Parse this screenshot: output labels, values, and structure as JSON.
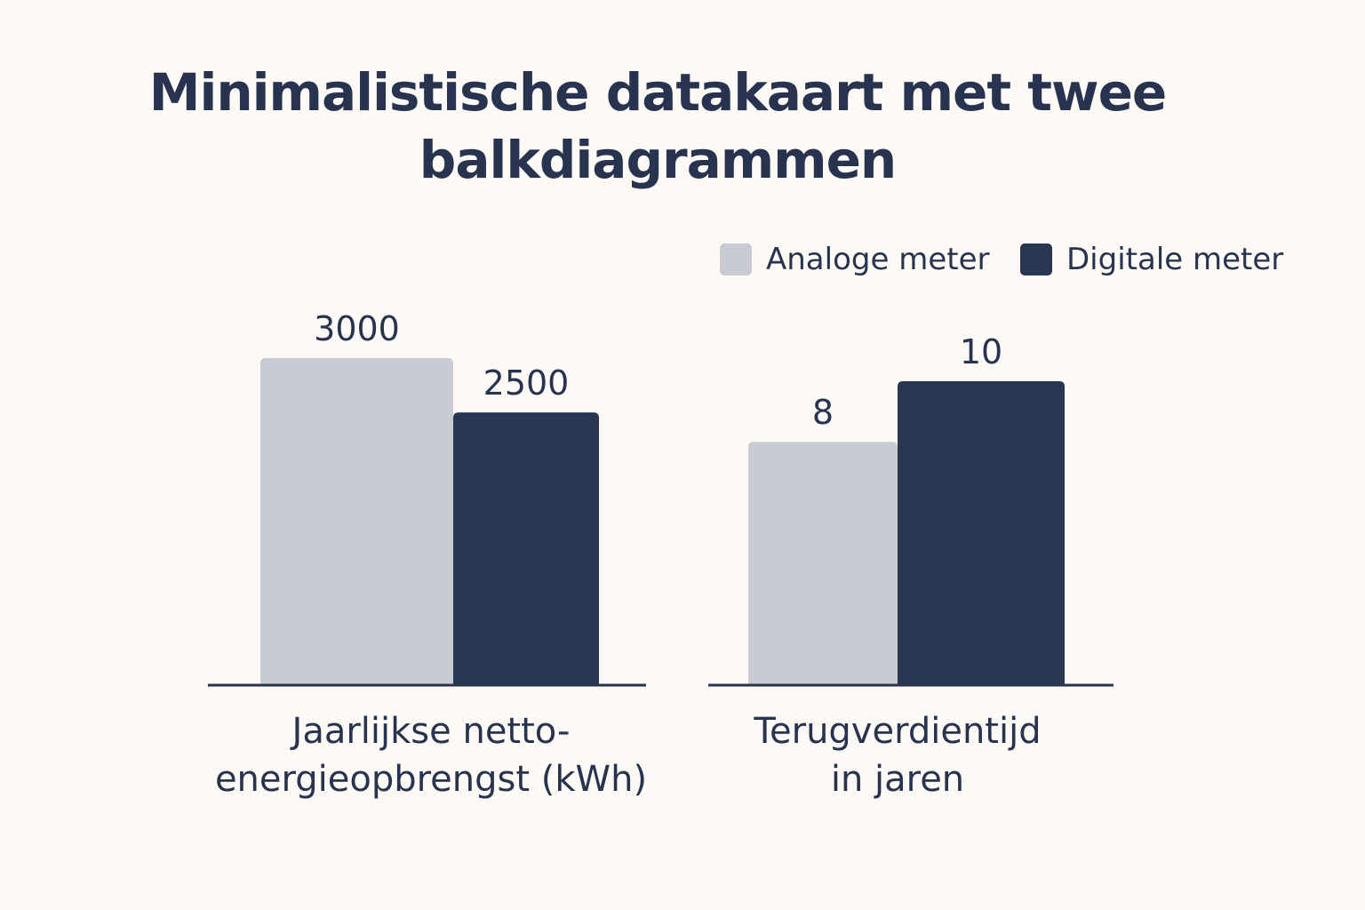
{
  "chart_data": [
    {
      "type": "bar",
      "title": "Minimalistische datakaart met twee balkdiagrammen",
      "category": "Jaarlijkse netto-energieopbrengst (kWh)",
      "category_lines": [
        "Jaarlijkse netto-",
        "energieopbrengst (kWh)"
      ],
      "series": [
        {
          "name": "Analoge meter",
          "value": 3000,
          "label": "3000",
          "color": "#c8cbd1"
        },
        {
          "name": "Digitale meter",
          "value": 2500,
          "label": "2500",
          "color": "#293651"
        }
      ],
      "ylim": [
        0,
        3000
      ]
    },
    {
      "type": "bar",
      "category": "Terugverdientijd in jaren",
      "category_lines": [
        "Terugverdientijd",
        "in jaren"
      ],
      "series": [
        {
          "name": "Analoge meter",
          "value": 8,
          "label": "8",
          "color": "#c8cbd1"
        },
        {
          "name": "Digitale meter",
          "value": 10,
          "label": "10",
          "color": "#293651"
        }
      ],
      "ylim": [
        0,
        10
      ]
    }
  ],
  "title": "Minimalistische datakaart met twee balkdiagrammen",
  "legend": [
    {
      "label": "Analoge meter",
      "color": "#c8cbd1"
    },
    {
      "label": "Digitale meter",
      "color": "#293651"
    }
  ]
}
